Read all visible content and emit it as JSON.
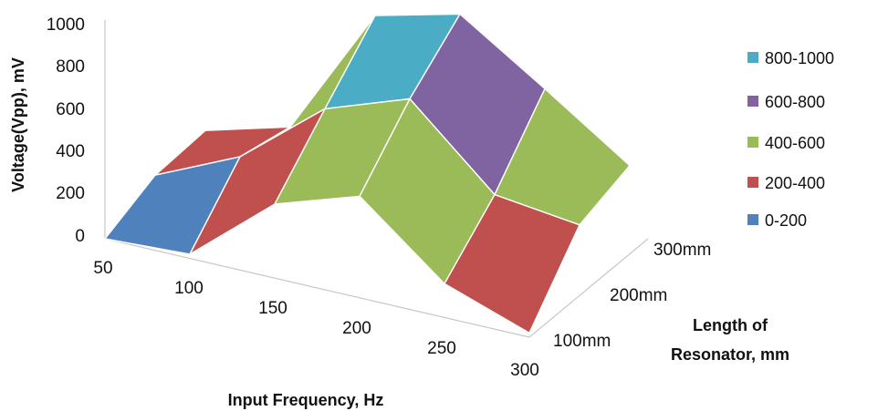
{
  "chart_data": {
    "type": "surface",
    "title": "",
    "x_axis": {
      "label": "Input Frequency, Hz",
      "categories": [
        "50",
        "100",
        "150",
        "200",
        "250",
        "300"
      ]
    },
    "depth_axis": {
      "label_line1": "Length of",
      "label_line2": "Resonator, mm",
      "categories": [
        "100mm",
        "200mm",
        "300mm"
      ]
    },
    "z_axis": {
      "label": "Voltage(Vpp), mV",
      "range": [
        0,
        1000
      ],
      "ticks": [
        "0",
        "200",
        "400",
        "600",
        "800",
        "1000"
      ]
    },
    "legend": {
      "placement": "right",
      "entries": [
        {
          "label": "800-1000",
          "color": "#4bacc6"
        },
        {
          "label": "600-800",
          "color": "#8064a2"
        },
        {
          "label": "400-600",
          "color": "#9bbb59"
        },
        {
          "label": "200-400",
          "color": "#c0504d"
        },
        {
          "label": "0-200",
          "color": "#4f81bd"
        }
      ]
    },
    "series": [
      {
        "depth": "100mm",
        "values": [
          0,
          20,
          350,
          480,
          160,
          20
        ]
      },
      {
        "depth": "200mm",
        "values": [
          120,
          300,
          620,
          760,
          400,
          350
        ]
      },
      {
        "depth": "300mm",
        "values": [
          150,
          260,
          880,
          980,
          720,
          450
        ]
      }
    ]
  }
}
